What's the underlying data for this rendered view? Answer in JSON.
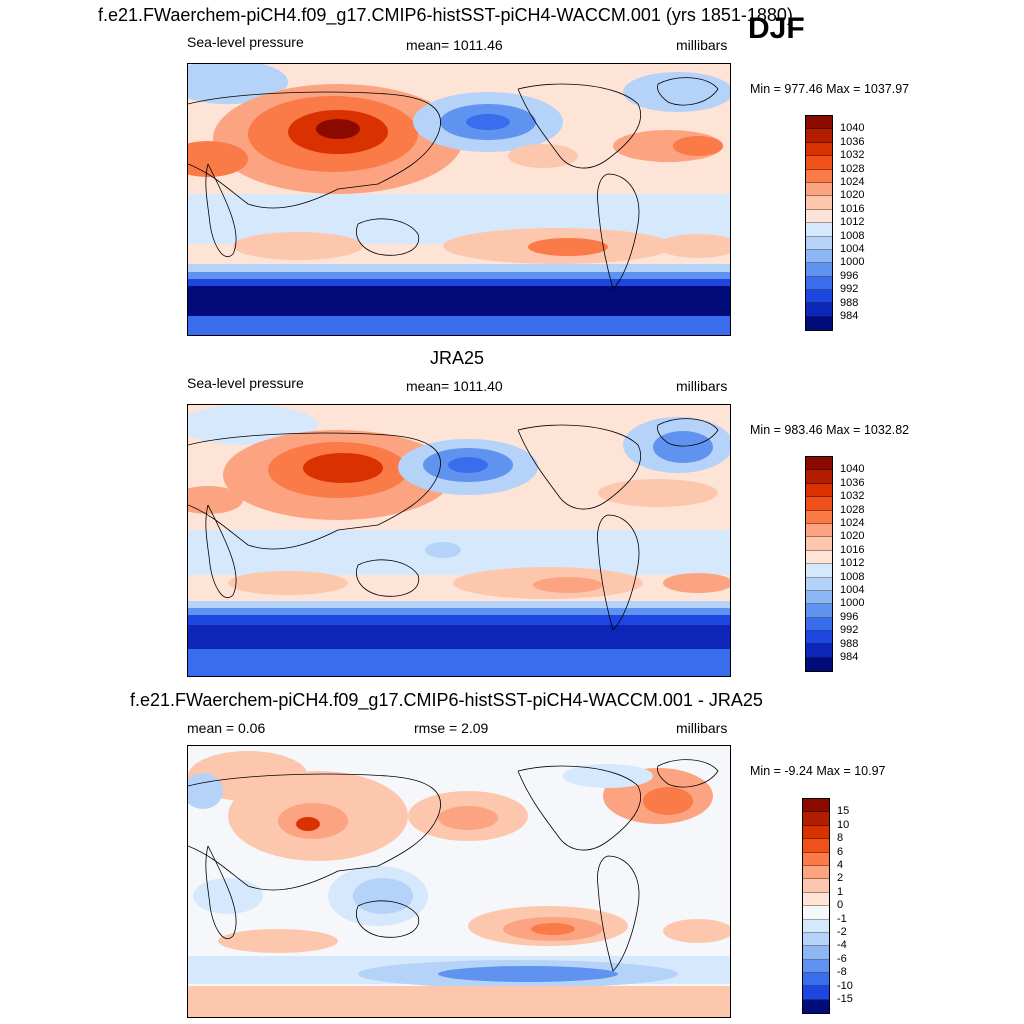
{
  "season": "DJF",
  "panels": [
    {
      "id": "model",
      "title": "f.e21.FWaerchem-piCH4.f09_g17.CMIP6-histSST-piCH4-WACCM.001 (yrs 1851-1880)",
      "left_label": "Sea-level pressure",
      "center_label": "mean= 1011.46",
      "right_label": "millibars",
      "minmax": "Min = 977.46 Max = 1037.97",
      "colorbar": {
        "ticks": [
          "1040",
          "1036",
          "1032",
          "1028",
          "1024",
          "1020",
          "1016",
          "1012",
          "1008",
          "1004",
          "1000",
          "996",
          "992",
          "988",
          "984"
        ],
        "colors": [
          "#8a0a00",
          "#b31e00",
          "#d93200",
          "#f0501a",
          "#fa7a48",
          "#fca482",
          "#fdc7ad",
          "#fde4d6",
          "#d6e8fb",
          "#b5d2f8",
          "#8db6f4",
          "#5f93ef",
          "#3a6ded",
          "#1d45e0",
          "#0d26b8",
          "#020b7a"
        ]
      }
    },
    {
      "id": "obs",
      "title": "JRA25",
      "left_label": "Sea-level pressure",
      "center_label": "mean= 1011.40",
      "right_label": "millibars",
      "minmax": "Min = 983.46 Max = 1032.82",
      "colorbar": {
        "ticks": [
          "1040",
          "1036",
          "1032",
          "1028",
          "1024",
          "1020",
          "1016",
          "1012",
          "1008",
          "1004",
          "1000",
          "996",
          "992",
          "988",
          "984"
        ],
        "colors": [
          "#8a0a00",
          "#b31e00",
          "#d93200",
          "#f0501a",
          "#fa7a48",
          "#fca482",
          "#fdc7ad",
          "#fde4d6",
          "#d6e8fb",
          "#b5d2f8",
          "#8db6f4",
          "#5f93ef",
          "#3a6ded",
          "#1d45e0",
          "#0d26b8",
          "#020b7a"
        ]
      }
    },
    {
      "id": "diff",
      "title": "f.e21.FWaerchem-piCH4.f09_g17.CMIP6-histSST-piCH4-WACCM.001 - JRA25",
      "left_label": "mean =   0.06",
      "center_label": "rmse =   2.09",
      "right_label": "millibars",
      "minmax": "Min =  -9.24 Max =  10.97",
      "colorbar": {
        "ticks": [
          "15",
          "10",
          "8",
          "6",
          "4",
          "2",
          "1",
          "0",
          "-1",
          "-2",
          "-4",
          "-6",
          "-8",
          "-10",
          "-15"
        ],
        "colors": [
          "#8a0a00",
          "#b31e00",
          "#d93200",
          "#f0501a",
          "#fa7a48",
          "#fca482",
          "#fdc7ad",
          "#fde4d6",
          "#f5f7fb",
          "#d6e8fb",
          "#b5d2f8",
          "#8db6f4",
          "#5f93ef",
          "#3a6ded",
          "#1d45e0",
          "#020b7a"
        ]
      }
    }
  ]
}
